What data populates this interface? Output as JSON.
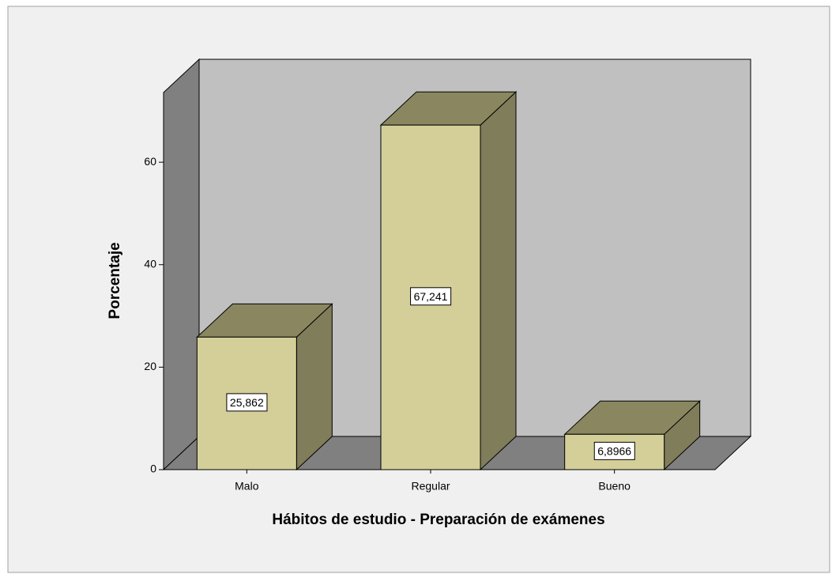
{
  "chart_data": {
    "type": "bar3d",
    "x_label": "Hábitos de estudio - Preparación de exámenes",
    "y_label": "Porcentaje",
    "categories": [
      "Malo",
      "Regular",
      "Bueno"
    ],
    "values": [
      25.862,
      67.241,
      6.8966
    ],
    "value_labels": [
      "25,862",
      "67,241",
      "6,8966"
    ],
    "color": "#d4cf98",
    "ylim": [
      0,
      73.6
    ],
    "yticks": [
      0,
      20,
      40,
      60
    ]
  }
}
